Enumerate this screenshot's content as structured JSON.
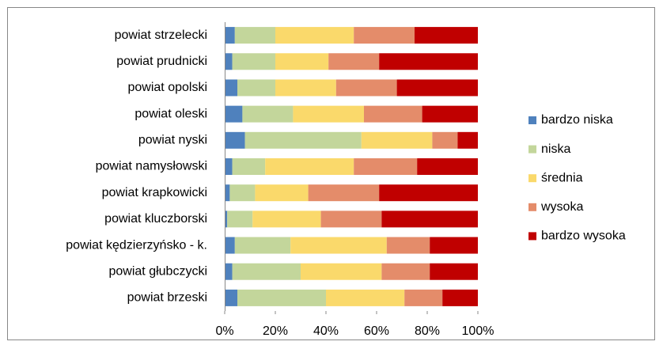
{
  "chart_data": {
    "type": "stacked-bar-horizontal",
    "categories": [
      "powiat strzelecki",
      "powiat prudnicki",
      "powiat opolski",
      "powiat oleski",
      "powiat nyski",
      "powiat namysłowski",
      "powiat krapkowicki",
      "powiat kluczborski",
      "powiat kędzierzyńsko - k.",
      "powiat głubczycki",
      "powiat brzeski"
    ],
    "series": [
      {
        "name": "bardzo niska",
        "color": "#4f81bd",
        "values": [
          4,
          3,
          5,
          7,
          8,
          3,
          2,
          1,
          4,
          3,
          5
        ]
      },
      {
        "name": "niska",
        "color": "#c3d69b",
        "values": [
          16,
          17,
          15,
          20,
          46,
          13,
          10,
          10,
          22,
          27,
          35
        ]
      },
      {
        "name": "średnia",
        "color": "#fad96b",
        "values": [
          31,
          21,
          24,
          28,
          28,
          35,
          21,
          27,
          38,
          32,
          31
        ]
      },
      {
        "name": "wysoka",
        "color": "#e48c6a",
        "values": [
          24,
          20,
          24,
          23,
          10,
          25,
          28,
          24,
          17,
          19,
          15
        ]
      },
      {
        "name": "bardzo wysoka",
        "color": "#c00000",
        "values": [
          25,
          39,
          32,
          22,
          8,
          24,
          39,
          38,
          19,
          19,
          14
        ]
      }
    ],
    "xlim": [
      0,
      100
    ],
    "xticks": [
      {
        "value": 0,
        "label": "0%"
      },
      {
        "value": 20,
        "label": "20%"
      },
      {
        "value": 40,
        "label": "40%"
      },
      {
        "value": 60,
        "label": "60%"
      },
      {
        "value": 80,
        "label": "80%"
      },
      {
        "value": 100,
        "label": "100%"
      }
    ],
    "legend": "right"
  }
}
